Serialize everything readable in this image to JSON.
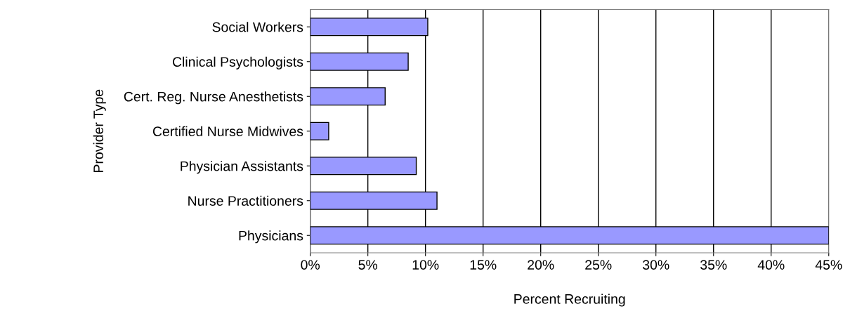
{
  "chart_data": {
    "type": "bar",
    "orientation": "horizontal",
    "xlabel": "Percent Recruiting",
    "ylabel": "Provider Type",
    "categories": [
      "Social Workers",
      "Clinical Psychologists",
      "Cert. Reg. Nurse Anesthetists",
      "Certified Nurse Midwives",
      "Physician Assistants",
      "Nurse Practitioners",
      "Physicians"
    ],
    "values": [
      10.2,
      8.5,
      6.5,
      1.6,
      9.2,
      11,
      45
    ],
    "color": "#9999ff",
    "xlim": [
      0,
      45
    ],
    "xticks": [
      {
        "value": 0,
        "label": "0%"
      },
      {
        "value": 5,
        "label": "5%"
      },
      {
        "value": 10,
        "label": "10%"
      },
      {
        "value": 15,
        "label": "15%"
      },
      {
        "value": 20,
        "label": "20%"
      },
      {
        "value": 25,
        "label": "25%"
      },
      {
        "value": 30,
        "label": "30%"
      },
      {
        "value": 35,
        "label": "35%"
      },
      {
        "value": 40,
        "label": "40%"
      },
      {
        "value": 45,
        "label": "45%"
      }
    ],
    "grid": "x",
    "legend": false
  }
}
